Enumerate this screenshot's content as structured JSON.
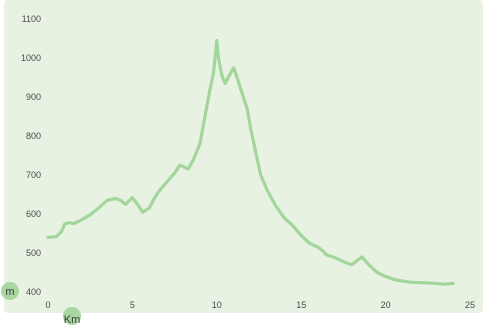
{
  "chart_data": {
    "type": "area",
    "title": "",
    "xlabel": "Km",
    "ylabel": "m",
    "xlim": [
      0,
      25
    ],
    "ylim": [
      400,
      1100
    ],
    "x_ticks": [
      "0",
      "5",
      "10",
      "15",
      "20",
      "25"
    ],
    "y_ticks": [
      "400",
      "500",
      "600",
      "700",
      "800",
      "900",
      "1000",
      "1100"
    ],
    "grid": false,
    "legend": "none",
    "colors": {
      "line": "#a3d69a",
      "fill": "#e8f2e2",
      "badge": "#a8d8a0"
    },
    "series": [
      {
        "x": [
          0,
          0.5,
          0.8,
          1.0,
          1.3,
          1.5,
          2.0,
          2.5,
          3.0,
          3.5,
          4.0,
          4.3,
          4.6,
          5.0,
          5.3,
          5.6,
          6.0,
          6.3,
          6.6,
          7.0,
          7.5,
          7.8,
          8.0,
          8.3,
          8.6,
          9.0,
          9.3,
          9.6,
          9.8,
          10.0,
          10.1,
          10.3,
          10.5,
          10.8,
          11.0,
          11.2,
          11.5,
          11.8,
          12.0,
          12.3,
          12.6,
          13.0,
          13.5,
          14.0,
          14.5,
          15.0,
          15.5,
          16.0,
          16.3,
          16.5,
          17.0,
          17.5,
          18.0,
          18.3,
          18.6,
          19.0,
          19.5,
          20.0,
          20.5,
          21.0,
          21.5,
          22.0,
          22.5,
          23.0,
          23.5,
          24.0
        ],
        "y": [
          540,
          542,
          555,
          575,
          578,
          575,
          585,
          598,
          615,
          635,
          640,
          635,
          625,
          642,
          625,
          605,
          615,
          640,
          660,
          680,
          705,
          725,
          722,
          715,
          738,
          780,
          850,
          920,
          960,
          1045,
          1000,
          955,
          935,
          960,
          975,
          950,
          910,
          870,
          820,
          760,
          700,
          660,
          620,
          590,
          570,
          545,
          525,
          515,
          505,
          495,
          488,
          478,
          470,
          480,
          490,
          470,
          450,
          440,
          432,
          428,
          425,
          424,
          423,
          422,
          420,
          422
        ]
      }
    ]
  }
}
